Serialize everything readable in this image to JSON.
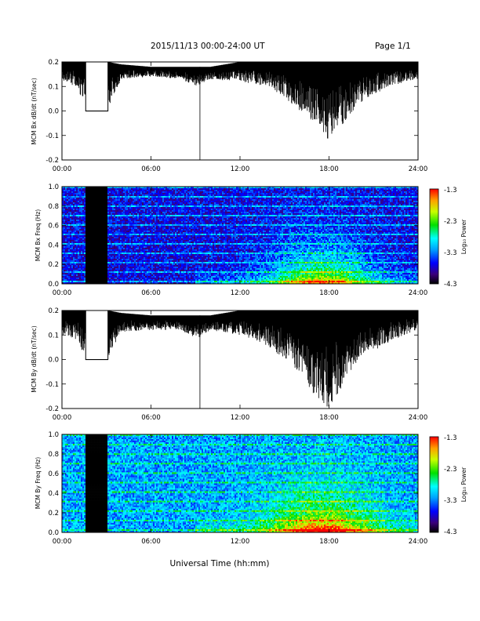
{
  "header": {
    "title": "2015/11/13  00:00-24:00 UT",
    "page": "Page 1/1"
  },
  "footer": {
    "xlabel": "Universal Time (hh:mm)"
  },
  "colorbar": {
    "label": "Log₁₀ Power",
    "ticks": [
      "-1.3",
      "-2.3",
      "-3.3",
      "-4.3"
    ]
  },
  "chart_data": [
    {
      "type": "line",
      "panel": "bx-timeseries",
      "ylabel": "MCM Bx dB/dt (nT/sec)",
      "xlim": [
        0,
        24
      ],
      "ylim": [
        -0.2,
        0.2
      ],
      "xticks": [
        "00:00",
        "06:00",
        "12:00",
        "18:00",
        "24:00"
      ],
      "yticks": [
        "0.2",
        "0.1",
        "0.0",
        "-0.1",
        "-0.2"
      ],
      "gap_hours": [
        1.6,
        3.1
      ],
      "gap_value": 0.0,
      "spike_hours": [
        9.3
      ],
      "envelope": {
        "x": [
          0,
          1,
          1.6,
          3.1,
          4,
          6,
          8,
          9,
          10,
          12,
          13,
          14,
          15,
          16,
          17,
          18,
          19,
          20,
          22,
          24
        ],
        "upper": [
          0.2,
          0.2,
          0.2,
          0.2,
          0.19,
          0.18,
          0.18,
          0.18,
          0.18,
          0.2,
          0.2,
          0.2,
          0.2,
          0.2,
          0.2,
          0.2,
          0.2,
          0.2,
          0.2,
          0.2
        ],
        "lower": [
          0.12,
          0.1,
          0.0,
          0.0,
          0.13,
          0.14,
          0.13,
          0.1,
          0.13,
          0.12,
          0.11,
          0.1,
          0.05,
          0.0,
          -0.05,
          -0.12,
          -0.05,
          0.03,
          0.1,
          0.13
        ]
      }
    },
    {
      "type": "heatmap",
      "panel": "bx-spectrogram",
      "ylabel": "MCM Bx Freq (Hz)",
      "xlim": [
        0,
        24
      ],
      "ylim": [
        0,
        1.0
      ],
      "clim": [
        -4.3,
        -1.3
      ],
      "xticks": [
        "00:00",
        "06:00",
        "12:00",
        "18:00",
        "24:00"
      ],
      "yticks": [
        "1.0",
        "0.8",
        "0.6",
        "0.4",
        "0.2",
        "0.0"
      ],
      "gap_hours": [
        1.6,
        3.1
      ],
      "base_level": -3.7,
      "activity_peak_hours": [
        17.5
      ]
    },
    {
      "type": "line",
      "panel": "by-timeseries",
      "ylabel": "MCM By dB/dt (nT/sec)",
      "xlim": [
        0,
        24
      ],
      "ylim": [
        -0.2,
        0.2
      ],
      "xticks": [
        "00:00",
        "06:00",
        "12:00",
        "18:00",
        "24:00"
      ],
      "yticks": [
        "0.2",
        "0.1",
        "0.0",
        "-0.1",
        "-0.2"
      ],
      "gap_hours": [
        1.6,
        3.1
      ],
      "gap_value": 0.0,
      "spike_hours": [
        9.3
      ],
      "envelope": {
        "x": [
          0,
          1,
          1.6,
          3.1,
          4,
          6,
          8,
          9,
          10,
          12,
          13,
          14,
          15,
          16,
          17,
          18,
          19,
          20,
          22,
          24
        ],
        "upper": [
          0.2,
          0.2,
          0.2,
          0.2,
          0.19,
          0.18,
          0.18,
          0.18,
          0.18,
          0.2,
          0.2,
          0.2,
          0.2,
          0.2,
          0.2,
          0.2,
          0.2,
          0.2,
          0.2,
          0.2
        ],
        "lower": [
          0.1,
          0.08,
          0.0,
          0.0,
          0.11,
          0.12,
          0.12,
          0.08,
          0.12,
          0.1,
          0.08,
          0.05,
          0.0,
          -0.05,
          -0.15,
          -0.2,
          -0.1,
          0.0,
          0.07,
          0.12
        ]
      }
    },
    {
      "type": "heatmap",
      "panel": "by-spectrogram",
      "ylabel": "MCM By Freq (Hz)",
      "xlim": [
        0,
        24
      ],
      "ylim": [
        0,
        1.0
      ],
      "clim": [
        -4.3,
        -1.3
      ],
      "xticks": [
        "00:00",
        "06:00",
        "12:00",
        "18:00",
        "24:00"
      ],
      "yticks": [
        "1.0",
        "0.8",
        "0.6",
        "0.4",
        "0.2",
        "0.0"
      ],
      "gap_hours": [
        1.6,
        3.1
      ],
      "base_level": -3.2,
      "activity_peak_hours": [
        17.5
      ]
    }
  ]
}
